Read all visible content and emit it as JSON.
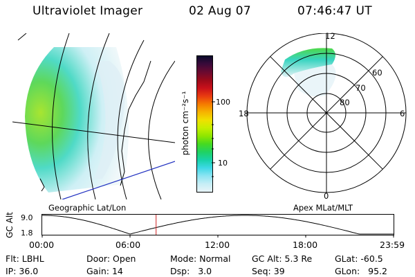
{
  "header": {
    "instrument": "Ultraviolet Imager",
    "date": "02 Aug 07",
    "time": "07:46:47 UT"
  },
  "geo_panel": {
    "caption": "Geographic Lat/Lon"
  },
  "apex_panel": {
    "caption": "Apex MLat/MLT",
    "mlt_labels": [
      "12",
      "18",
      "6",
      "0"
    ],
    "mlat_labels": [
      "60",
      "70",
      "80"
    ]
  },
  "colorbar": {
    "unit": "photon cm⁻²s⁻¹",
    "tick_labels": [
      "100",
      "10"
    ],
    "colors": [
      "#0a0a2a",
      "#3a0a3a",
      "#6a0a30",
      "#9a0a1a",
      "#c8101a",
      "#e83a10",
      "#f57a00",
      "#f6b200",
      "#f0e000",
      "#c6ef00",
      "#8fe600",
      "#46da20",
      "#20d262",
      "#18d2a8",
      "#3ed8e6",
      "#8ce4f2",
      "#c6eef6",
      "#e8f4f8"
    ]
  },
  "altitude_panel": {
    "ylabel": "GC Alt",
    "y_ticks": [
      "9.0",
      "1.8"
    ],
    "x_ticks": [
      "00:00",
      "06:00",
      "12:00",
      "18:00",
      "23:59"
    ],
    "current_time_hours": 7.78
  },
  "info": {
    "flt_label": "Flt:",
    "flt_value": "LBHL",
    "ip_label": "IP:",
    "ip_value": "36.0",
    "door_label": "Door:",
    "door_value": "Open",
    "gain_label": "Gain:",
    "gain_value": "14",
    "mode_label": "Mode:",
    "mode_value": "Normal",
    "dsp_label": "Dsp:",
    "dsp_value": "3.0",
    "gcalt_label": "GC Alt:",
    "gcalt_value": "5.3 Re",
    "seq_label": "Seq:",
    "seq_value": "39",
    "glat_label": "GLat:",
    "glat_value": "-60.5",
    "glon_label": "GLon:",
    "glon_value": "95.2"
  }
}
